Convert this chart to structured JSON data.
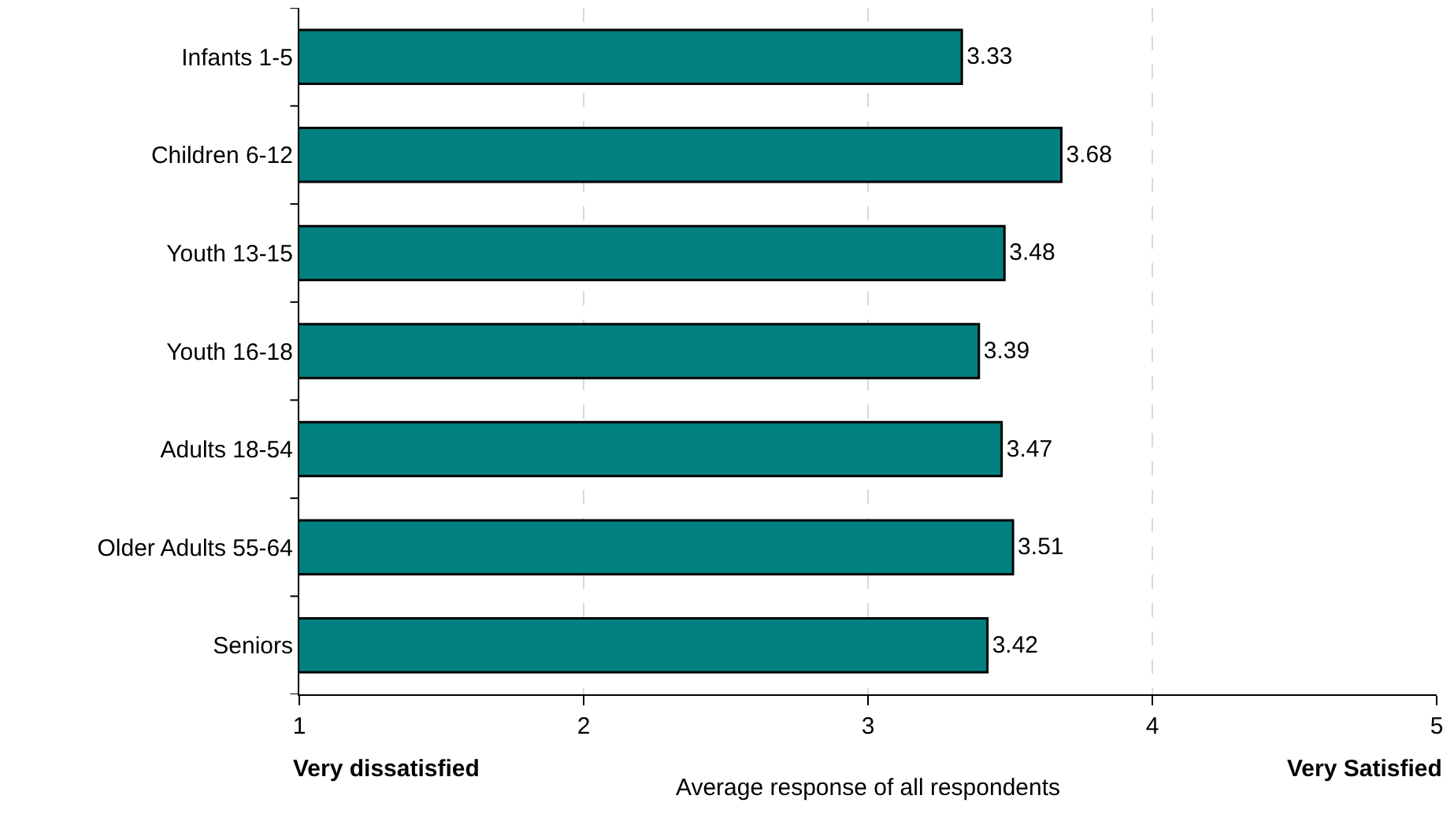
{
  "chart_data": {
    "type": "bar",
    "orientation": "horizontal",
    "xlabel": "Average response of all respondents",
    "categories": [
      "Infants 1-5",
      "Children 6-12",
      "Youth 13-15",
      "Youth 16-18",
      "Adults 18-54",
      "Older Adults 55-64",
      "Seniors"
    ],
    "values": [
      3.33,
      3.68,
      3.48,
      3.39,
      3.47,
      3.51,
      3.42
    ],
    "color": "#008080",
    "xlim": [
      1,
      5
    ],
    "xticks": [
      1,
      2,
      3,
      4,
      5
    ],
    "grid": "x",
    "data_labels": true,
    "legend": false,
    "annotations": [
      "Very dissatisfied",
      "Very Satisfied"
    ]
  }
}
